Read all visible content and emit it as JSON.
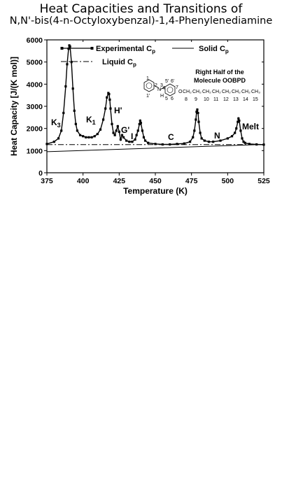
{
  "figure": {
    "title_line1": "Heat Capacities and Transitions of",
    "title_line2": "N,N'-bis(4-n-Octyloxybenzal)-1,4-Phenylenediamine"
  },
  "chart_data": {
    "type": "line",
    "title": "Heat Capacities and Transitions of N,N'-bis(4-n-Octyloxybenzal)-1,4-Phenylenediamine",
    "xlabel": "Temperature  (K)",
    "ylabel": "Heat Capacity  [J/(K mol)]",
    "xlim": [
      375,
      525
    ],
    "ylim": [
      0,
      6000
    ],
    "xticks": [
      "375",
      "400",
      "425",
      "450",
      "475",
      "500",
      "525"
    ],
    "yticks": [
      "0",
      "1000",
      "2000",
      "3000",
      "4000",
      "5000",
      "6000"
    ],
    "legend_position": "top-left",
    "legend": {
      "experimental": "Experimental C",
      "solid": "Solid C",
      "liquid": "Liquid C",
      "subscript": "p"
    },
    "series": [
      {
        "name": "Experimental Cp",
        "style": "solid line with square markers",
        "color": "#000000",
        "x": [
          375,
          380,
          383,
          385,
          386.5,
          388,
          389,
          390,
          390.5,
          391,
          392,
          393,
          394,
          395,
          396,
          398,
          400,
          402,
          404,
          406,
          408,
          410,
          412,
          414,
          415.5,
          416.5,
          417.5,
          418,
          418.5,
          419,
          420,
          421,
          422,
          423,
          424,
          425,
          426,
          427,
          428,
          430,
          432,
          434,
          436,
          437,
          438,
          439,
          439.5,
          440,
          441,
          442,
          443,
          445,
          450,
          455,
          460,
          465,
          470,
          474,
          476,
          477,
          478,
          478.5,
          479,
          479.5,
          480,
          481,
          482,
          484,
          487,
          490,
          495,
          500,
          503,
          505,
          506,
          507,
          507.5,
          508,
          509,
          510,
          511,
          512,
          515,
          520,
          525
        ],
        "y": [
          1300,
          1400,
          1550,
          1900,
          2700,
          3900,
          4900,
          5600,
          5750,
          5700,
          5000,
          3800,
          2800,
          2200,
          1900,
          1700,
          1650,
          1600,
          1600,
          1600,
          1650,
          1750,
          1950,
          2400,
          2900,
          3400,
          3600,
          3550,
          3300,
          2900,
          2200,
          1800,
          1700,
          1900,
          2100,
          1850,
          1500,
          1700,
          1600,
          1450,
          1400,
          1400,
          1500,
          1700,
          1900,
          2200,
          2350,
          2250,
          1900,
          1600,
          1450,
          1350,
          1300,
          1280,
          1280,
          1300,
          1320,
          1400,
          1600,
          1900,
          2400,
          2750,
          2850,
          2700,
          2300,
          1800,
          1550,
          1450,
          1400,
          1400,
          1450,
          1550,
          1650,
          1800,
          2000,
          2300,
          2450,
          2350,
          1900,
          1550,
          1400,
          1350,
          1300,
          1280,
          1270
        ]
      },
      {
        "name": "Solid Cp",
        "style": "solid thin line",
        "color": "#000000",
        "x": [
          375,
          525
        ],
        "y": [
          950,
          1280
        ]
      },
      {
        "name": "Liquid Cp",
        "style": "dash-dot line",
        "color": "#000000",
        "x": [
          375,
          525
        ],
        "y": [
          1270,
          1270
        ]
      }
    ],
    "annotations": [
      {
        "text": "K",
        "sub": "3",
        "x": 381,
        "y": 2200
      },
      {
        "text": "K",
        "sub": "1",
        "x": 403,
        "y": 2400
      },
      {
        "text": "H'",
        "x": 420,
        "y": 2800
      },
      {
        "text": "G'",
        "x": 428,
        "y": 1900
      },
      {
        "text": "I",
        "x": 437.5,
        "y": 1600
      },
      {
        "text": "C",
        "x": 460,
        "y": 1600
      },
      {
        "text": "N",
        "x": 493,
        "y": 1600
      },
      {
        "text": "Melt",
        "x": 512,
        "y": 2600
      }
    ],
    "inset": {
      "caption_line1": "Right Half of the",
      "caption_line2": "Molecule OOBPD",
      "labels": [
        "1",
        "1'",
        "2",
        "3",
        "4",
        "5",
        "5'",
        "6",
        "6'",
        "7",
        "8",
        "9",
        "10",
        "11",
        "12",
        "13",
        "14",
        "15",
        "N",
        "H",
        "O",
        "CH₂",
        "CH₃"
      ]
    }
  }
}
